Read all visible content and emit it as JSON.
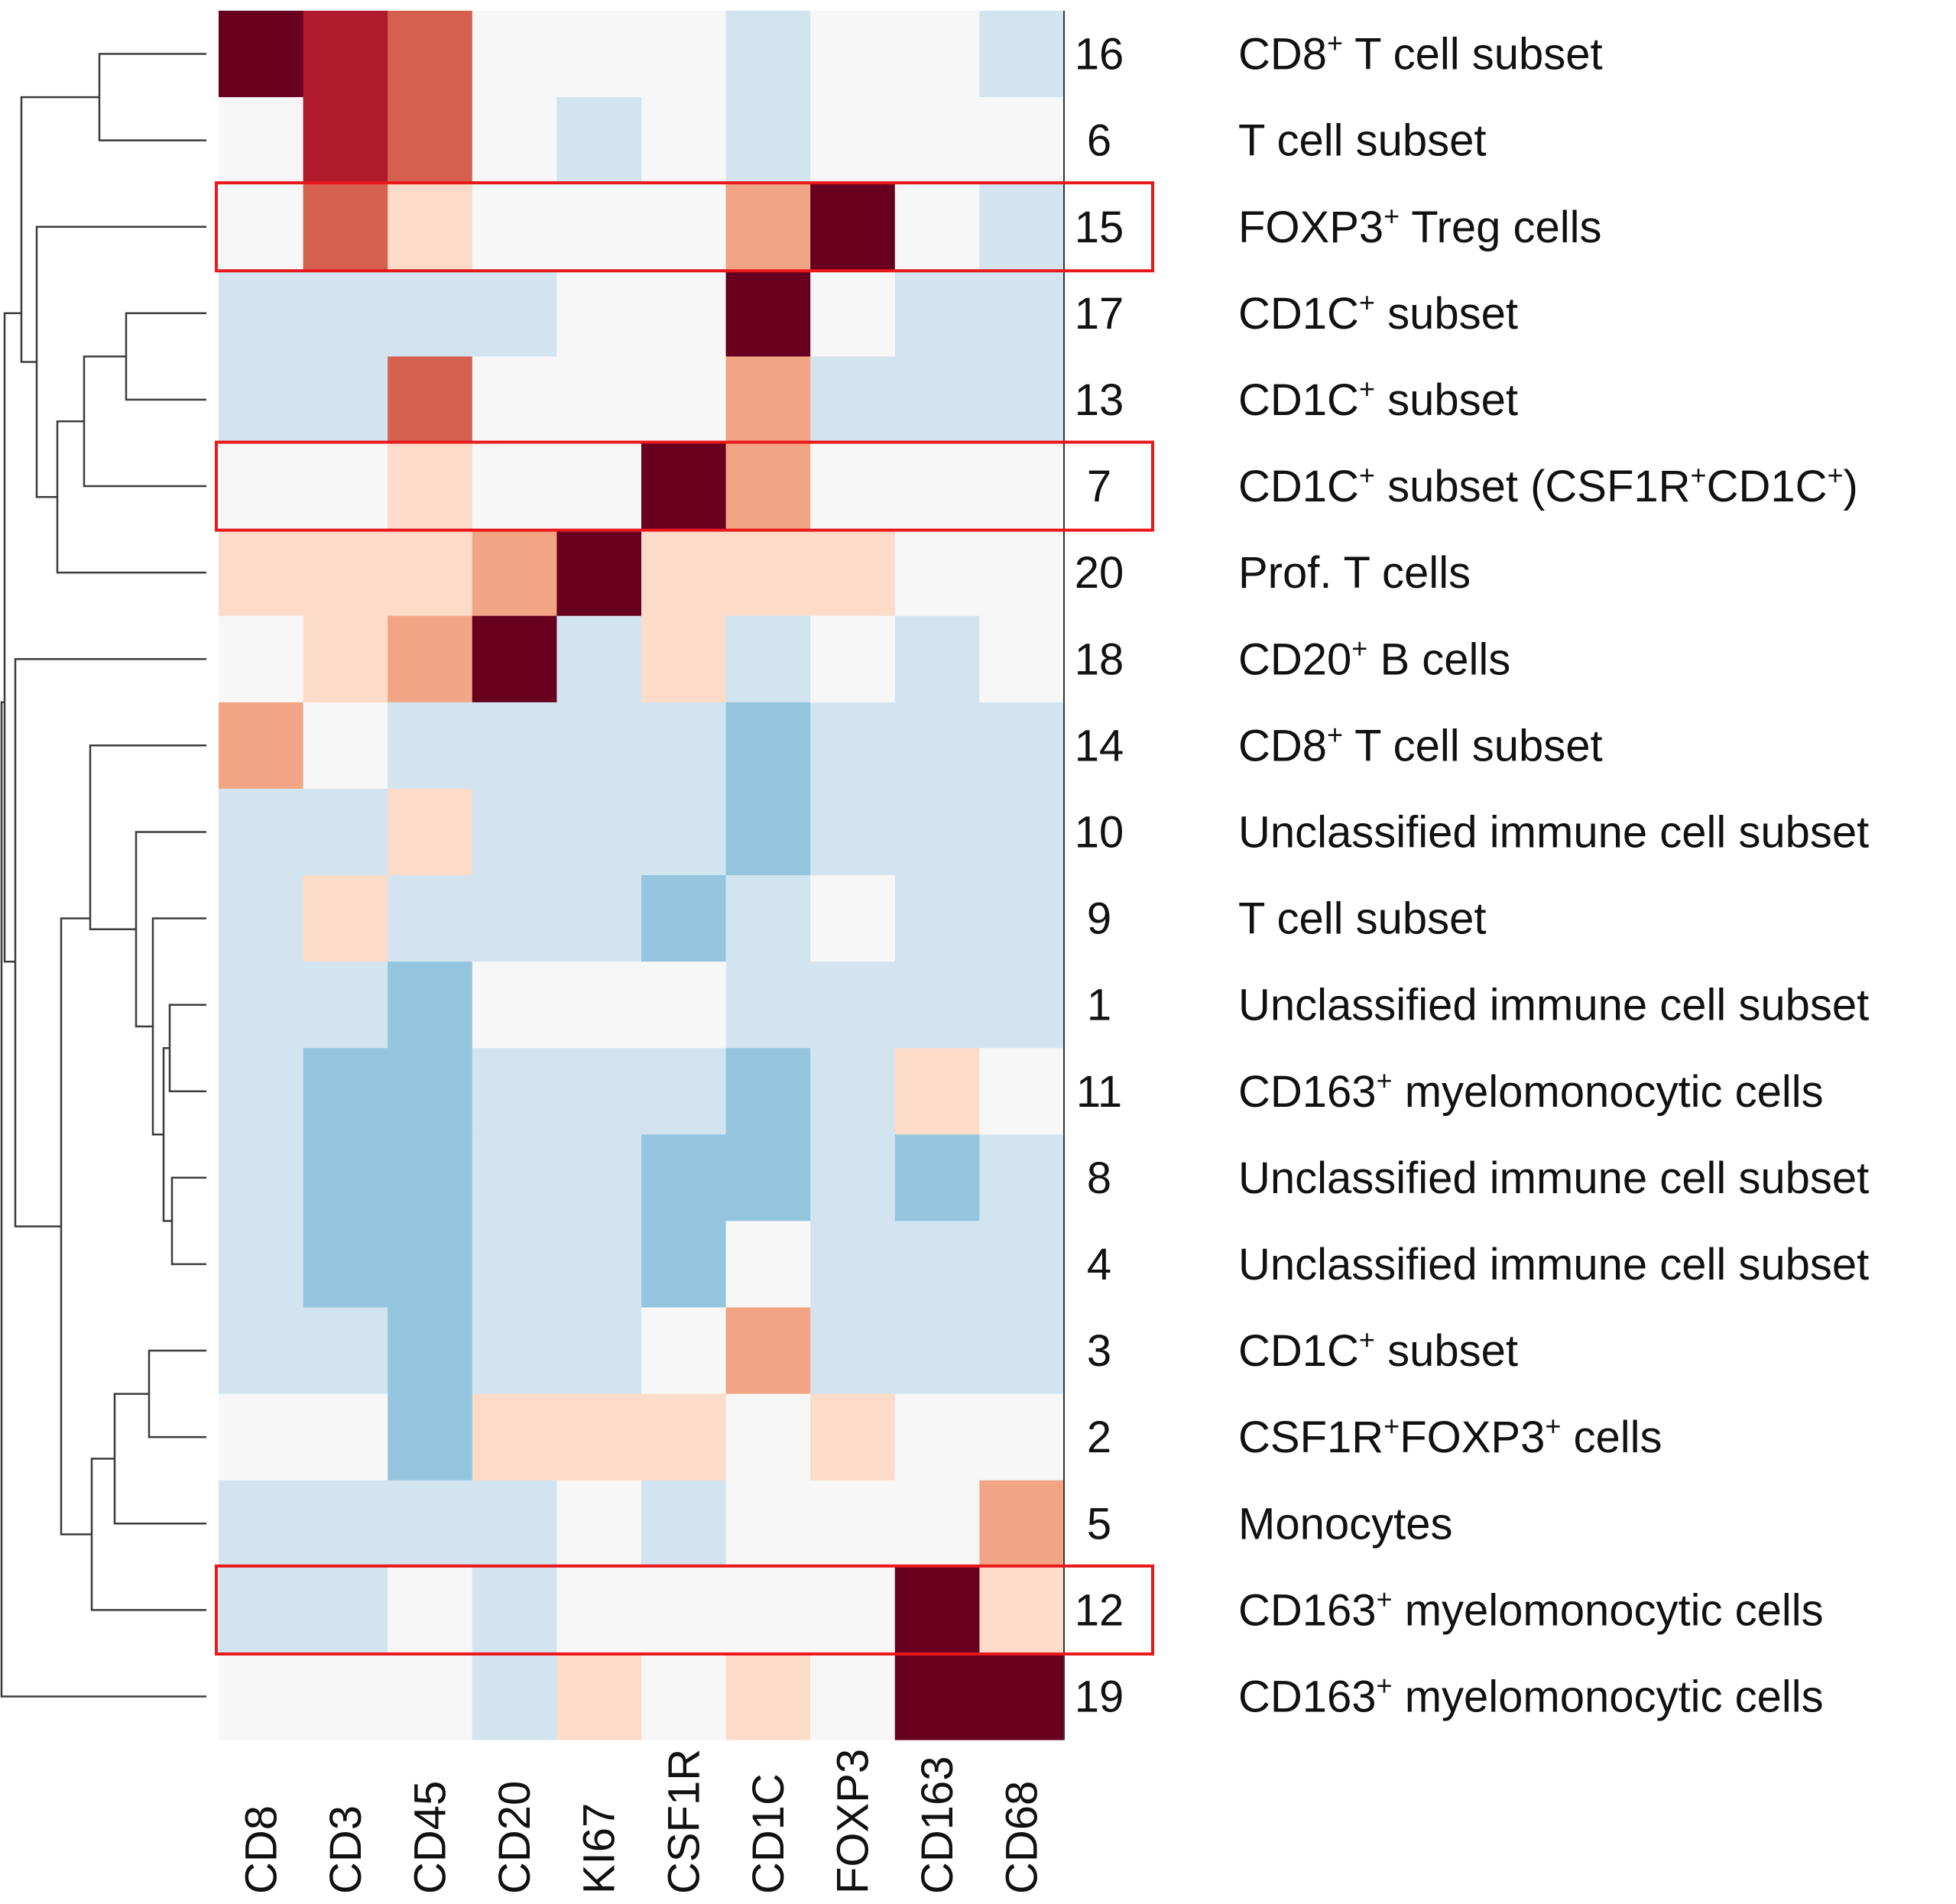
{
  "chart_data": {
    "type": "heatmap",
    "title": "",
    "columns": [
      "CD8",
      "CD3",
      "CD45",
      "CD20",
      "KI67",
      "CSF1R",
      "CD1C",
      "FOXP3",
      "CD163",
      "CD68"
    ],
    "rows": [
      {
        "cluster": "16",
        "label": [
          {
            "t": "CD8"
          },
          {
            "t": "+",
            "sup": true
          },
          {
            "t": " T cell subset"
          }
        ],
        "values": [
          3,
          2,
          1,
          0,
          0,
          0,
          -1,
          0,
          0,
          -1
        ],
        "highlighted": false
      },
      {
        "cluster": "6",
        "label": [
          {
            "t": "T cell subset"
          }
        ],
        "values": [
          0,
          2,
          1,
          0,
          -1,
          0,
          -1,
          0,
          0,
          0
        ],
        "highlighted": false
      },
      {
        "cluster": "15",
        "label": [
          {
            "t": "FOXP3"
          },
          {
            "t": "+",
            "sup": true
          },
          {
            "t": " Treg cells"
          }
        ],
        "values": [
          0,
          1,
          0.25,
          0,
          0,
          0,
          0.5,
          3,
          0,
          -1
        ],
        "highlighted": true
      },
      {
        "cluster": "17",
        "label": [
          {
            "t": "CD1C"
          },
          {
            "t": "+",
            "sup": true
          },
          {
            "t": " subset"
          }
        ],
        "values": [
          -1,
          -1,
          -1,
          -1,
          0,
          0,
          3,
          0,
          -1,
          -1
        ],
        "highlighted": false
      },
      {
        "cluster": "13",
        "label": [
          {
            "t": "CD1C"
          },
          {
            "t": "+",
            "sup": true
          },
          {
            "t": " subset"
          }
        ],
        "values": [
          -1,
          -1,
          1,
          0,
          0,
          0,
          0.5,
          -1,
          -1,
          -1
        ],
        "highlighted": false
      },
      {
        "cluster": "7",
        "label": [
          {
            "t": "CD1C"
          },
          {
            "t": "+",
            "sup": true
          },
          {
            "t": " subset  (CSF1R"
          },
          {
            "t": "+",
            "sup": true
          },
          {
            "t": "CD1C"
          },
          {
            "t": "+",
            "sup": true
          },
          {
            "t": ")"
          }
        ],
        "values": [
          0,
          0,
          0.25,
          0,
          0,
          3,
          0.5,
          0,
          0,
          0
        ],
        "highlighted": true
      },
      {
        "cluster": "20",
        "label": [
          {
            "t": "Prof. T cells"
          }
        ],
        "values": [
          0.25,
          0.25,
          0.25,
          0.5,
          3,
          0.25,
          0.25,
          0.25,
          0,
          0
        ],
        "highlighted": false
      },
      {
        "cluster": "18",
        "label": [
          {
            "t": "CD20"
          },
          {
            "t": "+",
            "sup": true
          },
          {
            "t": " B cells"
          }
        ],
        "values": [
          0,
          0.25,
          0.5,
          3,
          -1,
          0.25,
          -1,
          0,
          -1,
          0
        ],
        "highlighted": false
      },
      {
        "cluster": "14",
        "label": [
          {
            "t": "CD8"
          },
          {
            "t": "+",
            "sup": true
          },
          {
            "t": " T cell subset"
          }
        ],
        "values": [
          0.5,
          0,
          -1,
          -1,
          -1,
          -1,
          -2,
          -1,
          -1,
          -1
        ],
        "highlighted": false
      },
      {
        "cluster": "10",
        "label": [
          {
            "t": "Unclassified immune cell subset"
          }
        ],
        "values": [
          -1,
          -1,
          0.25,
          -1,
          -1,
          -1,
          -2,
          -1,
          -1,
          -1
        ],
        "highlighted": false
      },
      {
        "cluster": "9",
        "label": [
          {
            "t": "T cell subset"
          }
        ],
        "values": [
          -1,
          0.25,
          -1,
          -1,
          -1,
          -2,
          -1,
          0,
          -1,
          -1
        ],
        "highlighted": false
      },
      {
        "cluster": "1",
        "label": [
          {
            "t": "Unclassified immune cell subset"
          }
        ],
        "values": [
          -1,
          -1,
          -2,
          0,
          0,
          0,
          -1,
          -1,
          -1,
          -1
        ],
        "highlighted": false
      },
      {
        "cluster": "11",
        "label": [
          {
            "t": "CD163"
          },
          {
            "t": "+",
            "sup": true
          },
          {
            "t": " myelomonocytic cells"
          }
        ],
        "values": [
          -1,
          -2,
          -2,
          -1,
          -1,
          -1,
          -2,
          -1,
          0.25,
          0
        ],
        "highlighted": false
      },
      {
        "cluster": "8",
        "label": [
          {
            "t": "Unclassified immune cell subset"
          }
        ],
        "values": [
          -1,
          -2,
          -2,
          -1,
          -1,
          -2,
          -2,
          -1,
          -2,
          -1
        ],
        "highlighted": false
      },
      {
        "cluster": "4",
        "label": [
          {
            "t": "Unclassified immune cell subset"
          }
        ],
        "values": [
          -1,
          -2,
          -2,
          -1,
          -1,
          -2,
          0,
          -1,
          -1,
          -1
        ],
        "highlighted": false
      },
      {
        "cluster": "3",
        "label": [
          {
            "t": "CD1C"
          },
          {
            "t": "+",
            "sup": true
          },
          {
            "t": " subset"
          }
        ],
        "values": [
          -1,
          -1,
          -2,
          -1,
          -1,
          0,
          0.5,
          -1,
          -1,
          -1
        ],
        "highlighted": false
      },
      {
        "cluster": "2",
        "label": [
          {
            "t": "CSF1R"
          },
          {
            "t": "+",
            "sup": true
          },
          {
            "t": "FOXP3"
          },
          {
            "t": "+",
            "sup": true
          },
          {
            "t": " cells"
          }
        ],
        "values": [
          0,
          0,
          -2,
          0.25,
          0.25,
          0.25,
          0,
          0.25,
          0,
          0
        ],
        "highlighted": false
      },
      {
        "cluster": "5",
        "label": [
          {
            "t": "Monocytes"
          }
        ],
        "values": [
          -1,
          -1,
          -1,
          -1,
          0,
          -1,
          0,
          0,
          0,
          0.5
        ],
        "highlighted": false
      },
      {
        "cluster": "12",
        "label": [
          {
            "t": "CD163"
          },
          {
            "t": "+",
            "sup": true
          },
          {
            "t": " myelomonocytic cells"
          }
        ],
        "values": [
          -1,
          -1,
          0,
          -1,
          0,
          0,
          0,
          0,
          3,
          0.25
        ],
        "highlighted": true
      },
      {
        "cluster": "19",
        "label": [
          {
            "t": "CD163"
          },
          {
            "t": "+",
            "sup": true
          },
          {
            "t": " myelomonocytic cells"
          }
        ],
        "values": [
          0,
          0,
          0,
          -1,
          0.25,
          0,
          0.25,
          0,
          3,
          3
        ],
        "highlighted": false
      }
    ],
    "value_scale": {
      "-2": "#94c5de",
      "-1": "#d3e4f1",
      "0": "#f7f7f7",
      "0.25": "#fcdbc9",
      "0.5": "#f2a584",
      "1": "#d6604e",
      "2": "#b1192d",
      "3": "#67001f"
    },
    "highlight_color": "#e8181b",
    "dendrogram_color": "#3c3c3c",
    "dendrogram": "average-linkage clustering of rows (leaf order as listed)"
  }
}
